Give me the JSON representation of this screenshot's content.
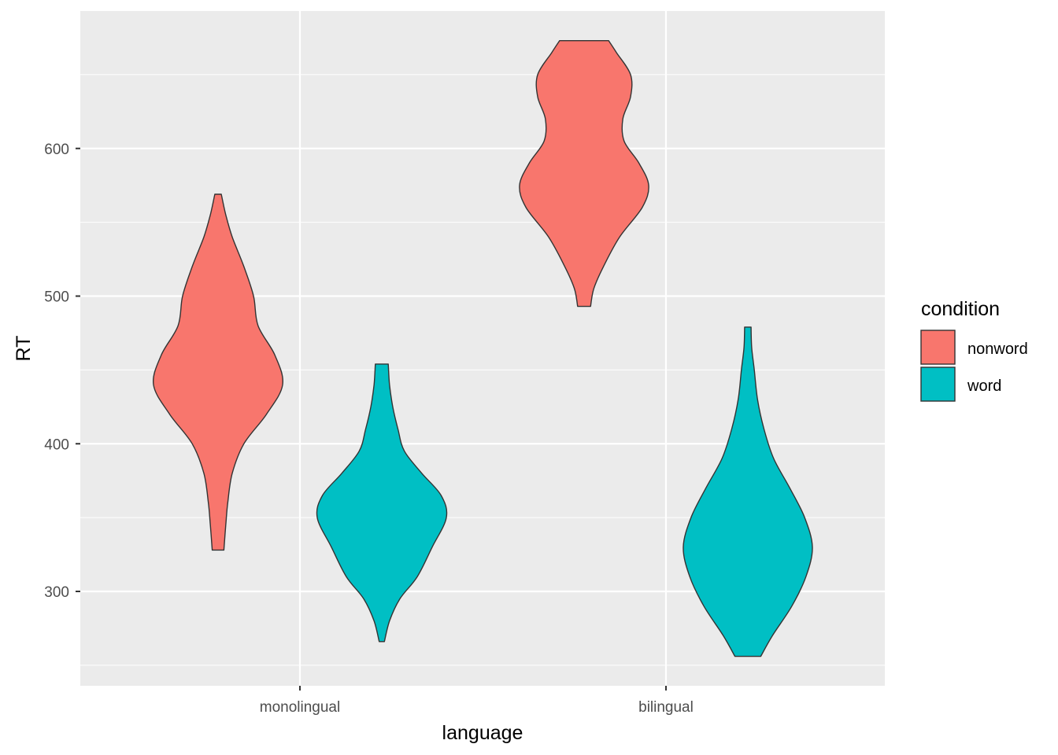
{
  "chart_data": {
    "type": "violin",
    "xlabel": "language",
    "ylabel": "RT",
    "categories": [
      "monolingual",
      "bilingual"
    ],
    "ylim": [
      235,
      675
    ],
    "yticks": [
      300,
      400,
      500,
      600
    ],
    "grid": true,
    "legend": {
      "title": "condition",
      "position": "right",
      "entries": [
        {
          "label": "nonword",
          "color": "#F8766D"
        },
        {
          "label": "word",
          "color": "#00BFC4"
        }
      ]
    },
    "series": [
      {
        "name": "nonword",
        "color": "#F8766D",
        "violins": [
          {
            "category": "monolingual",
            "min": 328,
            "max": 569,
            "profile": [
              [
                328,
                0.09
              ],
              [
                345,
                0.12
              ],
              [
                360,
                0.15
              ],
              [
                380,
                0.22
              ],
              [
                400,
                0.4
              ],
              [
                420,
                0.75
              ],
              [
                440,
                1.0
              ],
              [
                460,
                0.88
              ],
              [
                480,
                0.62
              ],
              [
                500,
                0.55
              ],
              [
                520,
                0.4
              ],
              [
                540,
                0.22
              ],
              [
                555,
                0.12
              ],
              [
                569,
                0.05
              ]
            ]
          },
          {
            "category": "bilingual",
            "min": 493,
            "max": 673,
            "profile": [
              [
                493,
                0.1
              ],
              [
                505,
                0.15
              ],
              [
                520,
                0.3
              ],
              [
                540,
                0.55
              ],
              [
                560,
                0.9
              ],
              [
                575,
                1.0
              ],
              [
                590,
                0.85
              ],
              [
                605,
                0.62
              ],
              [
                620,
                0.6
              ],
              [
                635,
                0.72
              ],
              [
                650,
                0.72
              ],
              [
                665,
                0.5
              ],
              [
                673,
                0.38
              ]
            ]
          }
        ]
      },
      {
        "name": "word",
        "color": "#00BFC4",
        "violins": [
          {
            "category": "monolingual",
            "min": 266,
            "max": 454,
            "profile": [
              [
                266,
                0.04
              ],
              [
                280,
                0.12
              ],
              [
                295,
                0.28
              ],
              [
                310,
                0.55
              ],
              [
                330,
                0.78
              ],
              [
                350,
                1.0
              ],
              [
                365,
                0.92
              ],
              [
                380,
                0.62
              ],
              [
                395,
                0.35
              ],
              [
                410,
                0.25
              ],
              [
                425,
                0.17
              ],
              [
                440,
                0.12
              ],
              [
                454,
                0.1
              ]
            ]
          },
          {
            "category": "bilingual",
            "min": 256,
            "max": 479,
            "profile": [
              [
                256,
                0.2
              ],
              [
                270,
                0.38
              ],
              [
                290,
                0.68
              ],
              [
                310,
                0.9
              ],
              [
                330,
                1.0
              ],
              [
                350,
                0.88
              ],
              [
                370,
                0.65
              ],
              [
                390,
                0.4
              ],
              [
                410,
                0.25
              ],
              [
                430,
                0.15
              ],
              [
                450,
                0.1
              ],
              [
                465,
                0.06
              ],
              [
                479,
                0.05
              ]
            ]
          }
        ]
      }
    ]
  }
}
